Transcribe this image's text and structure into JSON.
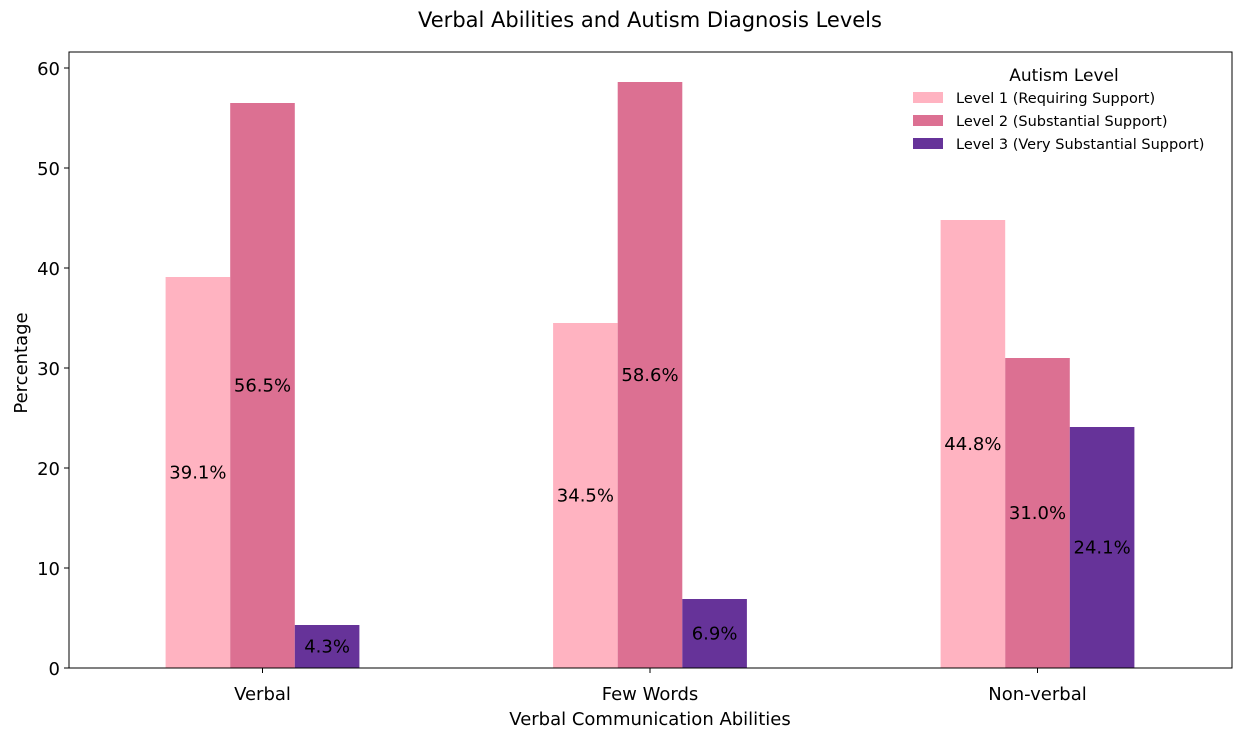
{
  "chart_data": {
    "type": "bar",
    "title": "Verbal Abilities and Autism Diagnosis Levels",
    "xlabel": "Verbal Communication Abilities",
    "ylabel": "Percentage",
    "categories": [
      "Verbal",
      "Few Words",
      "Non-verbal"
    ],
    "ylim": [
      0,
      61.6
    ],
    "yticks": [
      "0",
      "10",
      "20",
      "30",
      "40",
      "50",
      "60"
    ],
    "grid": false,
    "legend": {
      "title": "Autism Level",
      "placement": "top-right"
    },
    "series": [
      {
        "name": "Level 1 (Requiring Support)",
        "color": "#ffb3c1",
        "values": [
          39.1,
          34.5,
          44.8
        ],
        "labels": [
          "39.1%",
          "34.5%",
          "44.8%"
        ]
      },
      {
        "name": "Level 2 (Substantial Support)",
        "color": "#dc7092",
        "values": [
          56.5,
          58.6,
          31.0
        ],
        "labels": [
          "56.5%",
          "58.6%",
          "31.0%"
        ]
      },
      {
        "name": "Level 3 (Very Substantial Support)",
        "color": "#663399",
        "values": [
          4.3,
          6.9,
          24.1
        ],
        "labels": [
          "4.3%",
          "6.9%",
          "24.1%"
        ]
      }
    ]
  }
}
